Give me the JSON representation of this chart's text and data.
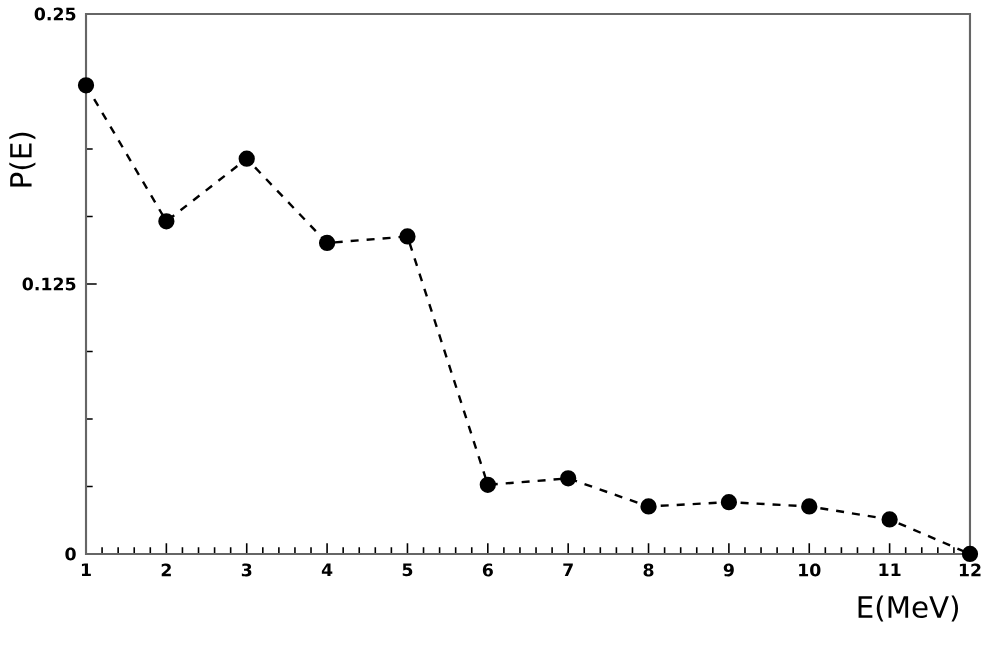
{
  "chart_data": {
    "type": "line",
    "xlabel": "E(MeV)",
    "ylabel": "P(E)",
    "x": [
      1,
      2,
      3,
      4,
      5,
      6,
      7,
      8,
      9,
      10,
      11,
      12
    ],
    "series": [
      {
        "color": "#000000",
        "values": [
          0.217,
          0.154,
          0.183,
          0.144,
          0.147,
          0.032,
          0.035,
          0.022,
          0.024,
          0.022,
          0.016,
          0
        ]
      }
    ],
    "xlim": [
      1,
      12
    ],
    "ylim": [
      0,
      0.25
    ],
    "xticks": [
      1,
      2,
      3,
      4,
      5,
      6,
      7,
      8,
      9,
      10,
      11,
      12
    ],
    "yticks": [
      0,
      0.125,
      0.25
    ],
    "marker": "circle",
    "line_style": "dashed"
  }
}
